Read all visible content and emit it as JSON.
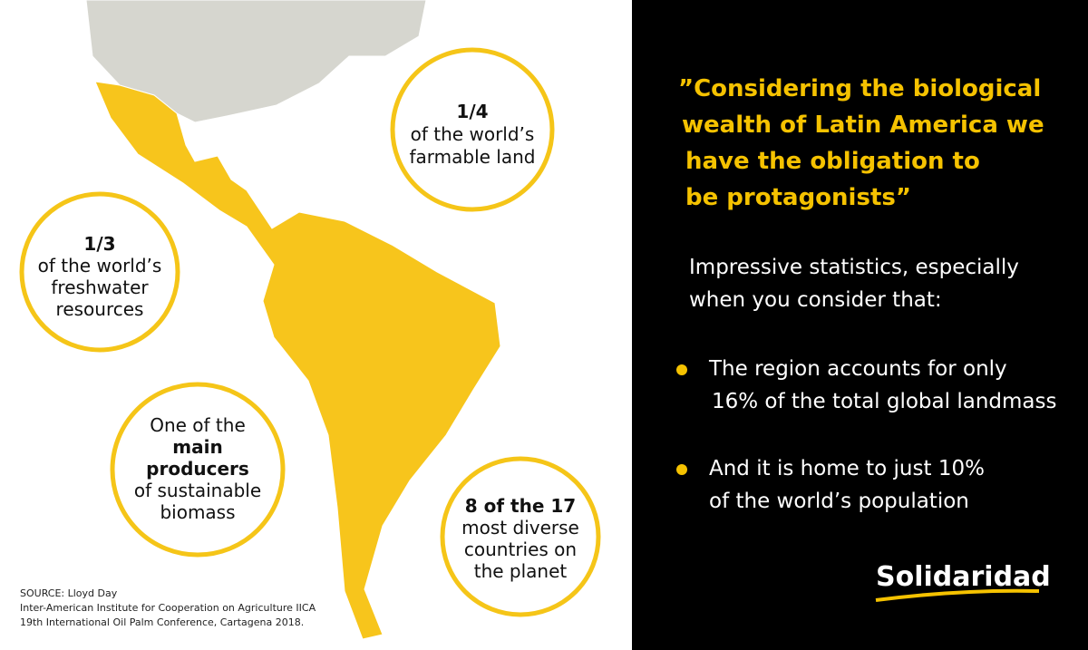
{
  "map_panel": {
    "circles": [
      {
        "lines": [
          "1/4",
          "of the world’s",
          "farmable land"
        ]
      },
      {
        "lines": [
          "1/3",
          "of the world’s",
          "freshwater",
          "resources"
        ]
      },
      {
        "lines": [
          "One of the",
          "main",
          "producers",
          "of sustainable",
          "biomass"
        ]
      },
      {
        "lines": [
          "8 of the 17",
          "most diverse",
          "countries on",
          "the planet"
        ]
      }
    ],
    "source": [
      "SOURCE: Lloyd Day",
      "Inter-American Institute for Cooperation on Agriculture IICA",
      "19th International Oil Palm Conference, Cartagena 2018."
    ]
  },
  "text_panel": {
    "quote": [
      "”Considering the biological",
      "wealth of Latin America we",
      "have the obligation to",
      "be protagonists”"
    ],
    "intro": [
      "Impressive statistics, especially",
      "when you consider that:"
    ],
    "bullets": [
      [
        "The region accounts for only",
        "16% of the total global landmass"
      ],
      [
        "And it is home to just 10%",
        "of the world’s population"
      ]
    ],
    "logo": "Solidaridad"
  }
}
